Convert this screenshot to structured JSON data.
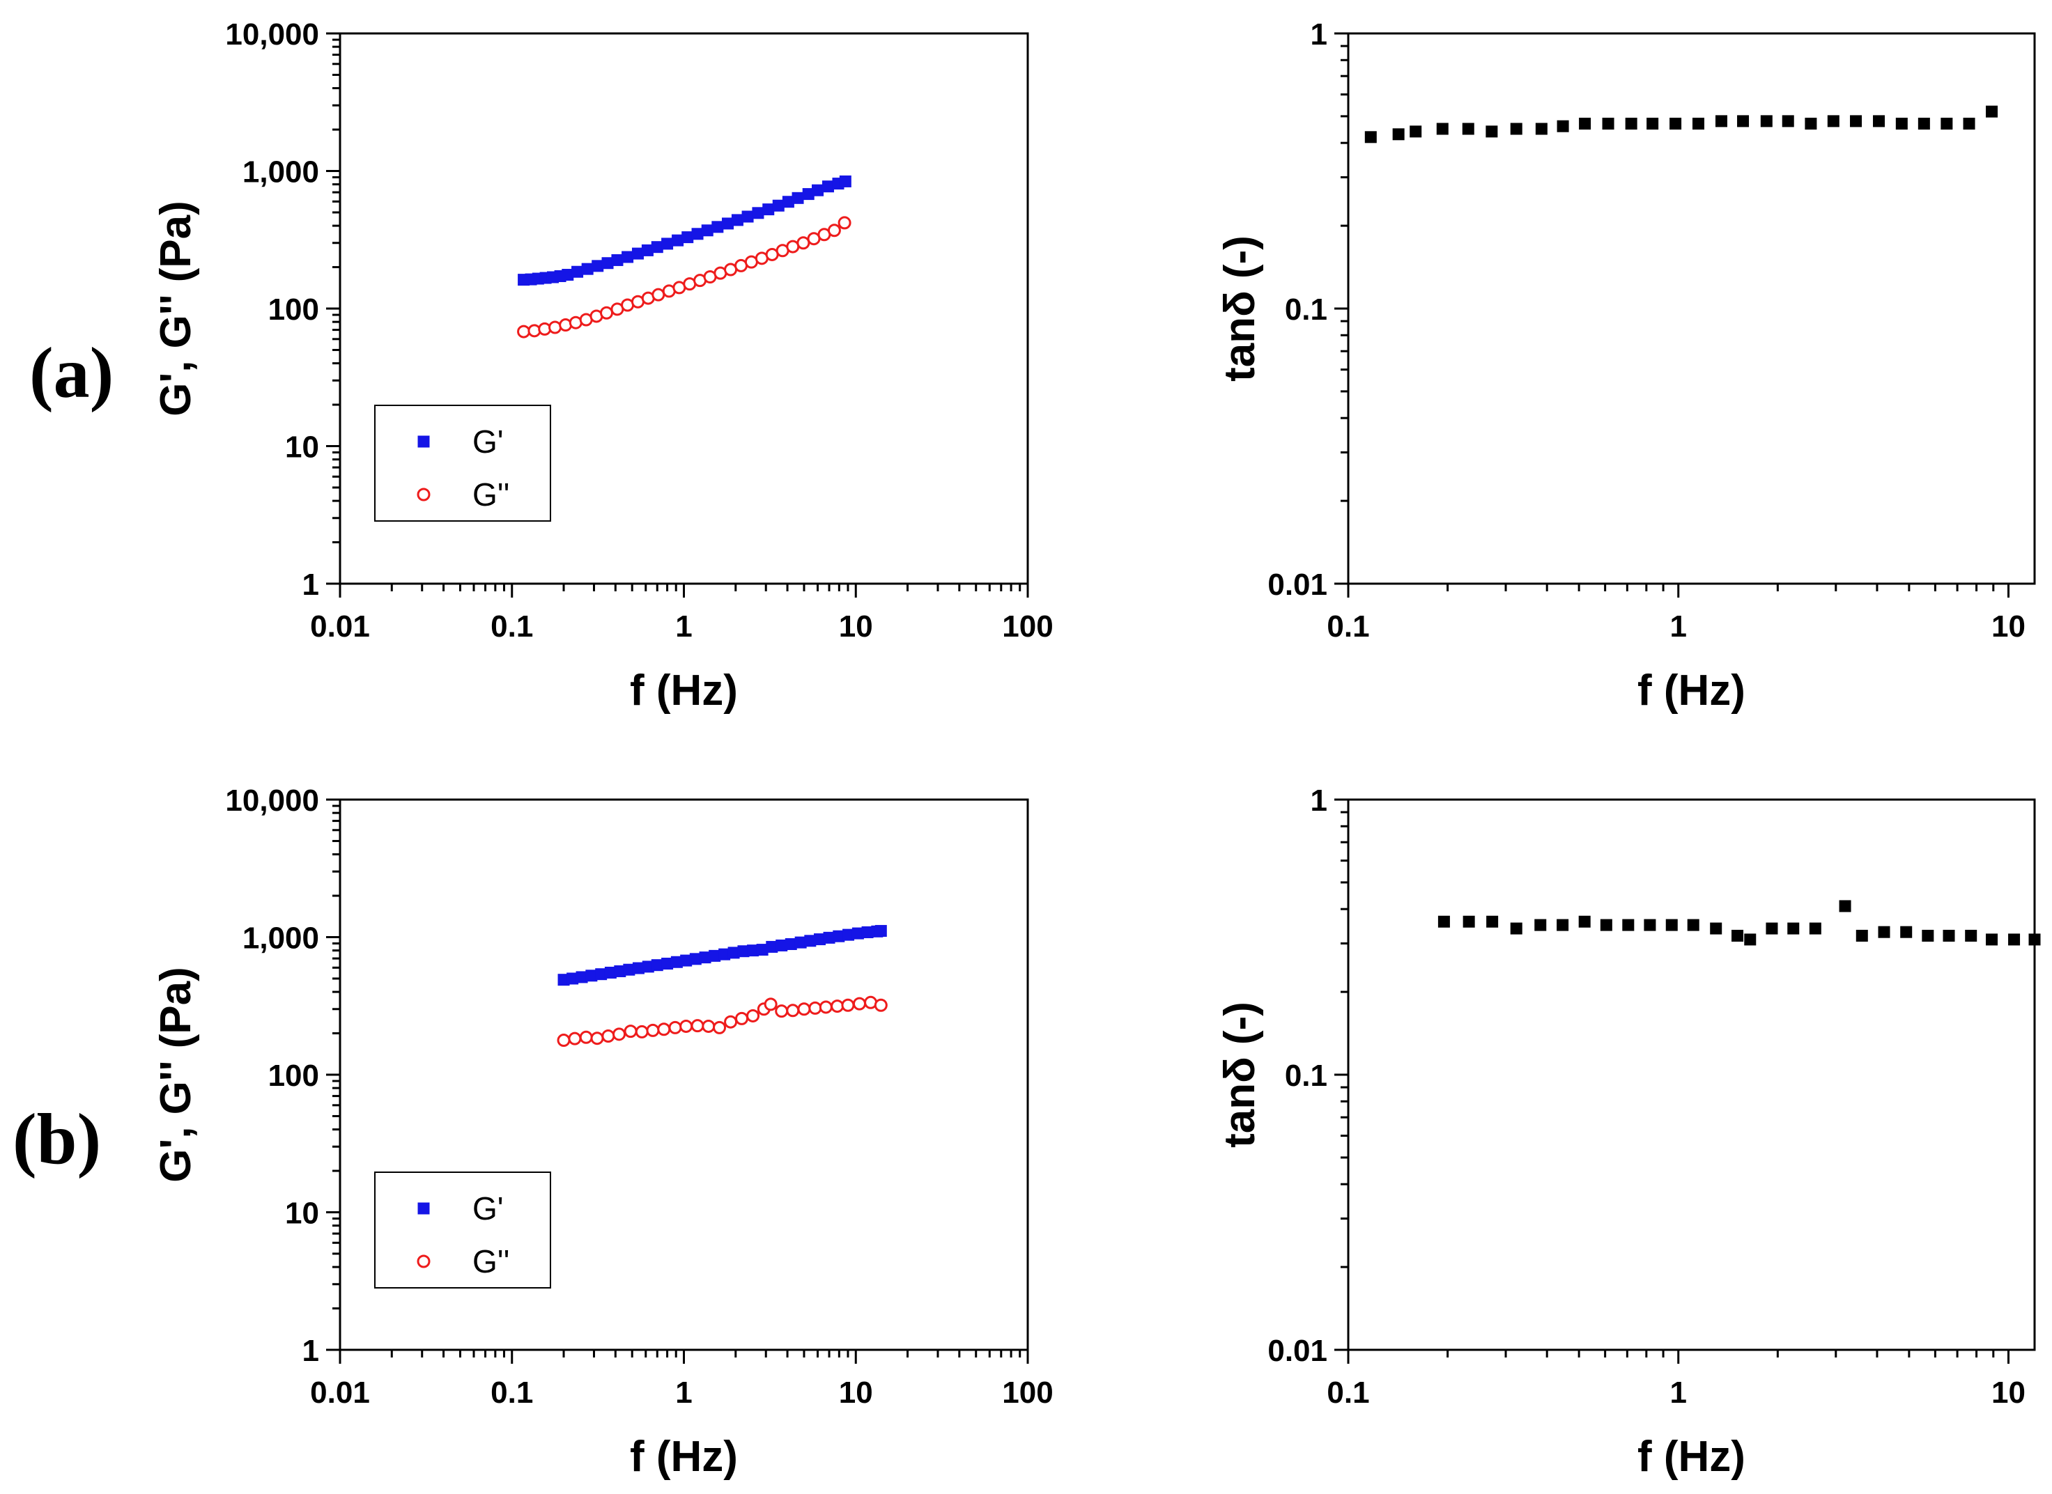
{
  "panel_labels": [
    "(a)",
    "(b)"
  ],
  "colors": {
    "g_prime": "#1515e6",
    "g_double_prime": "#ee1c1c",
    "tan_delta": "#000000",
    "axis": "#000000"
  },
  "chart_data": [
    {
      "id": "a-moduli",
      "type": "scatter",
      "xlabel": "f (Hz)",
      "ylabel": "G', G'' (Pa)",
      "xscale": "log",
      "yscale": "log",
      "xlim": [
        0.01,
        100
      ],
      "ylim": [
        1,
        10000
      ],
      "xticks": [
        0.01,
        0.1,
        1,
        10,
        100
      ],
      "xtick_labels": [
        "0.01",
        "0.1",
        "1",
        "10",
        "100"
      ],
      "yticks": [
        1,
        10,
        100,
        1000,
        10000
      ],
      "ytick_labels": [
        "1",
        "10",
        "100",
        "1,000",
        "10,000"
      ],
      "legend": {
        "position": "bottom-left",
        "entries": [
          "G'",
          "G''"
        ]
      },
      "series": [
        {
          "name": "G'",
          "marker": "filled-square",
          "x": [
            0.117,
            0.129,
            0.142,
            0.157,
            0.173,
            0.191,
            0.211,
            0.24,
            0.275,
            0.315,
            0.36,
            0.41,
            0.47,
            0.54,
            0.615,
            0.7,
            0.8,
            0.92,
            1.05,
            1.2,
            1.37,
            1.57,
            1.8,
            2.05,
            2.35,
            2.7,
            3.1,
            3.55,
            4.05,
            4.6,
            5.3,
            6.0,
            6.9,
            7.9,
            8.7
          ],
          "values": [
            162,
            163,
            165,
            167,
            169,
            172,
            176,
            185,
            194,
            204,
            214,
            225,
            237,
            251,
            265,
            280,
            296,
            313,
            330,
            349,
            370,
            392,
            415,
            440,
            466,
            495,
            526,
            560,
            597,
            636,
            680,
            724,
            772,
            810,
            840
          ]
        },
        {
          "name": "G''",
          "marker": "open-circle",
          "x": [
            0.117,
            0.135,
            0.155,
            0.178,
            0.205,
            0.235,
            0.27,
            0.31,
            0.355,
            0.41,
            0.47,
            0.54,
            0.62,
            0.71,
            0.82,
            0.94,
            1.08,
            1.24,
            1.42,
            1.63,
            1.87,
            2.15,
            2.47,
            2.84,
            3.26,
            3.75,
            4.3,
            4.95,
            5.7,
            6.55,
            7.5,
            8.6
          ],
          "values": [
            68,
            69,
            71,
            73,
            76,
            79,
            83,
            88,
            93,
            99,
            106,
            112,
            119,
            126,
            134,
            142,
            151,
            160,
            170,
            181,
            192,
            205,
            218,
            232,
            247,
            264,
            282,
            300,
            322,
            345,
            370,
            420
          ]
        }
      ]
    },
    {
      "id": "a-tandelta",
      "type": "scatter",
      "xlabel": "f (Hz)",
      "ylabel": "tanδ (-)",
      "xscale": "log",
      "yscale": "log",
      "xlim": [
        0.1,
        12
      ],
      "ylim": [
        0.01,
        1
      ],
      "xticks": [
        0.1,
        1,
        10
      ],
      "xtick_labels": [
        "0.1",
        "1",
        "10"
      ],
      "yticks": [
        0.01,
        0.1,
        1
      ],
      "ytick_labels": [
        "0.01",
        "0.1",
        "1"
      ],
      "series": [
        {
          "name": "tanδ",
          "marker": "filled-square",
          "x": [
            0.117,
            0.142,
            0.16,
            0.193,
            0.231,
            0.272,
            0.323,
            0.385,
            0.447,
            0.521,
            0.613,
            0.72,
            0.835,
            0.98,
            1.15,
            1.35,
            1.57,
            1.85,
            2.15,
            2.52,
            2.95,
            3.45,
            4.05,
            4.75,
            5.55,
            6.5,
            7.6,
            8.9
          ],
          "values": [
            0.42,
            0.43,
            0.44,
            0.45,
            0.45,
            0.44,
            0.45,
            0.45,
            0.46,
            0.47,
            0.47,
            0.47,
            0.47,
            0.47,
            0.47,
            0.48,
            0.48,
            0.48,
            0.48,
            0.47,
            0.48,
            0.48,
            0.48,
            0.47,
            0.47,
            0.47,
            0.47,
            0.52
          ]
        }
      ]
    },
    {
      "id": "b-moduli",
      "type": "scatter",
      "xlabel": "f (Hz)",
      "ylabel": "G', G'' (Pa)",
      "xscale": "log",
      "yscale": "log",
      "xlim": [
        0.01,
        100
      ],
      "ylim": [
        1,
        10000
      ],
      "xticks": [
        0.01,
        0.1,
        1,
        10,
        100
      ],
      "xtick_labels": [
        "0.01",
        "0.1",
        "1",
        "10",
        "100"
      ],
      "yticks": [
        1,
        10,
        100,
        1000,
        10000
      ],
      "ytick_labels": [
        "1",
        "10",
        "100",
        "1,000",
        "10,000"
      ],
      "legend": {
        "position": "bottom-left",
        "entries": [
          "G'",
          "G''"
        ]
      },
      "series": [
        {
          "name": "G'",
          "marker": "filled-square",
          "x": [
            0.2,
            0.225,
            0.255,
            0.29,
            0.33,
            0.375,
            0.425,
            0.48,
            0.545,
            0.62,
            0.7,
            0.8,
            0.91,
            1.03,
            1.17,
            1.33,
            1.51,
            1.72,
            1.95,
            2.22,
            2.52,
            2.86,
            3.25,
            3.7,
            4.2,
            4.78,
            5.43,
            6.17,
            7.0,
            7.96,
            9.05,
            10.3,
            11.7,
            13.3,
            14.0
          ],
          "values": [
            490,
            500,
            512,
            525,
            538,
            552,
            565,
            580,
            595,
            610,
            626,
            642,
            659,
            676,
            694,
            712,
            731,
            750,
            770,
            790,
            800,
            810,
            850,
            870,
            890,
            915,
            940,
            965,
            990,
            1015,
            1040,
            1065,
            1085,
            1100,
            1110
          ]
        },
        {
          "name": "G''",
          "marker": "open-circle",
          "x": [
            0.2,
            0.232,
            0.27,
            0.313,
            0.363,
            0.42,
            0.49,
            0.57,
            0.66,
            0.765,
            0.89,
            1.03,
            1.2,
            1.39,
            1.61,
            1.87,
            2.17,
            2.52,
            2.92,
            3.2,
            3.7,
            4.3,
            5.0,
            5.8,
            6.7,
            7.8,
            9.0,
            10.5,
            12.2,
            14.0
          ],
          "values": [
            178,
            183,
            187,
            184,
            191,
            197,
            207,
            205,
            210,
            214,
            220,
            225,
            227,
            225,
            220,
            242,
            256,
            268,
            300,
            325,
            290,
            293,
            300,
            305,
            310,
            315,
            320,
            328,
            335,
            320
          ]
        }
      ]
    },
    {
      "id": "b-tandelta",
      "type": "scatter",
      "xlabel": "f (Hz)",
      "ylabel": "tanδ (-)",
      "xscale": "log",
      "yscale": "log",
      "xlim": [
        0.1,
        12
      ],
      "ylim": [
        0.01,
        1
      ],
      "xticks": [
        0.1,
        1,
        10
      ],
      "xtick_labels": [
        "0.1",
        "1",
        "10"
      ],
      "yticks": [
        0.01,
        0.1,
        1
      ],
      "ytick_labels": [
        "0.01",
        "0.1",
        "1"
      ],
      "series": [
        {
          "name": "tanδ",
          "marker": "filled-square",
          "x": [
            0.195,
            0.232,
            0.273,
            0.323,
            0.382,
            0.446,
            0.52,
            0.605,
            0.705,
            0.82,
            0.955,
            1.11,
            1.3,
            1.51,
            1.65,
            1.92,
            2.23,
            2.6,
            3.2,
            3.6,
            4.2,
            4.9,
            5.7,
            6.6,
            7.7,
            8.9,
            10.4,
            12.0
          ],
          "values": [
            0.36,
            0.36,
            0.36,
            0.34,
            0.35,
            0.35,
            0.36,
            0.35,
            0.35,
            0.35,
            0.35,
            0.35,
            0.34,
            0.32,
            0.31,
            0.34,
            0.34,
            0.34,
            0.41,
            0.32,
            0.33,
            0.33,
            0.32,
            0.32,
            0.32,
            0.31,
            0.31,
            0.31
          ]
        }
      ]
    }
  ]
}
